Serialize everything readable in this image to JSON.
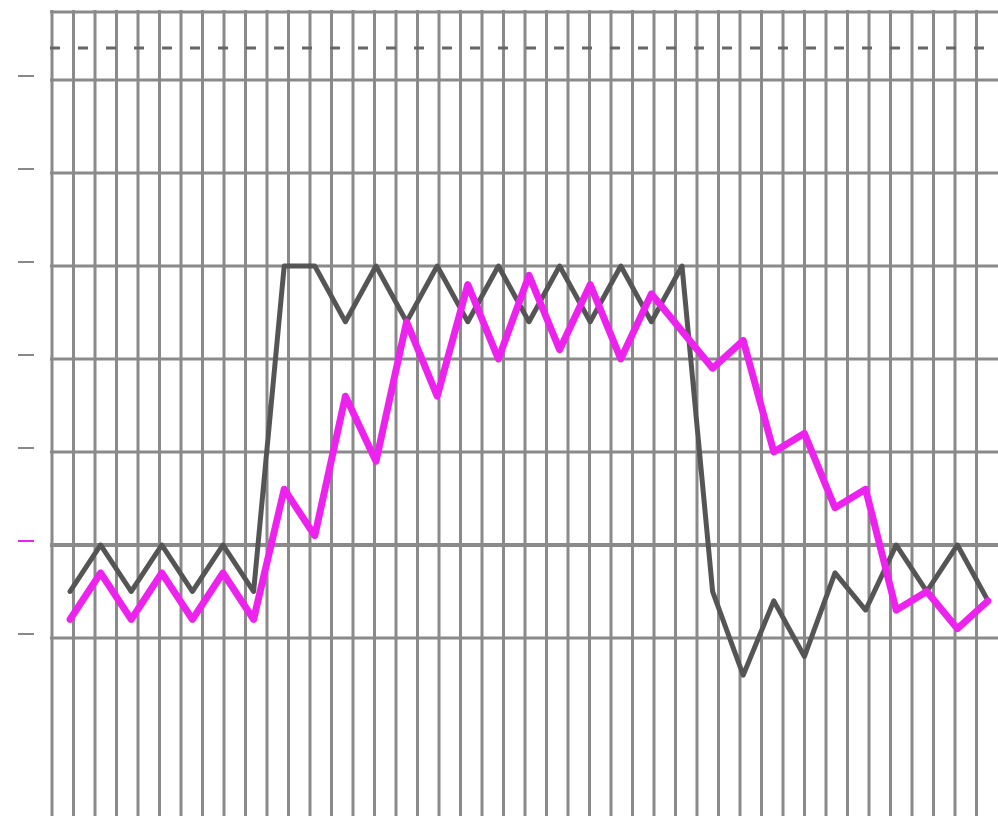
{
  "chart_data": {
    "type": "line",
    "title": "",
    "xlabel": "",
    "ylabel": "",
    "grid": true,
    "legend": "none",
    "x": [
      0,
      1,
      2,
      3,
      4,
      5,
      6,
      7,
      8,
      9,
      10,
      11,
      12,
      13,
      14,
      15,
      16,
      17,
      18,
      19,
      20,
      21,
      22,
      23,
      24,
      25,
      26,
      27,
      28,
      29,
      30
    ],
    "xlim": [
      0,
      30
    ],
    "ylim": [
      -2,
      6
    ],
    "yticks": [
      -1,
      0,
      1,
      2,
      3,
      4,
      5,
      6
    ],
    "ytick_labels": [
      "",
      "",
      "",
      "",
      "",
      "",
      "",
      ""
    ],
    "series": [
      {
        "values": [
          -0.5,
          0,
          -0.5,
          0,
          -0.5,
          0,
          -0.5,
          3.0,
          3.0,
          2.4,
          3.0,
          2.4,
          3.0,
          2.4,
          3.0,
          2.4,
          3.0,
          2.4,
          3.0,
          2.4,
          3.0,
          -0.5,
          -1.4,
          -0.6,
          -1.2,
          -0.3,
          -0.7,
          0,
          -0.5,
          0,
          -0.6
        ],
        "color": "#555555"
      },
      {
        "values": [
          -0.8,
          -0.3,
          -0.8,
          -0.3,
          -0.8,
          -0.3,
          -0.8,
          0.6,
          0.1,
          1.6,
          0.9,
          2.4,
          1.6,
          2.8,
          2.0,
          2.9,
          2.1,
          2.8,
          2.0,
          2.7,
          2.3,
          1.9,
          2.2,
          1.0,
          1.2,
          0.4,
          0.6,
          -0.7,
          -0.5,
          -0.9,
          -0.6
        ],
        "color": "#ee22ee"
      }
    ],
    "colors": {
      "grid": "#8a8a8a",
      "dashed_line": "#666666",
      "left_accent_tick": "#ee22ee"
    }
  }
}
